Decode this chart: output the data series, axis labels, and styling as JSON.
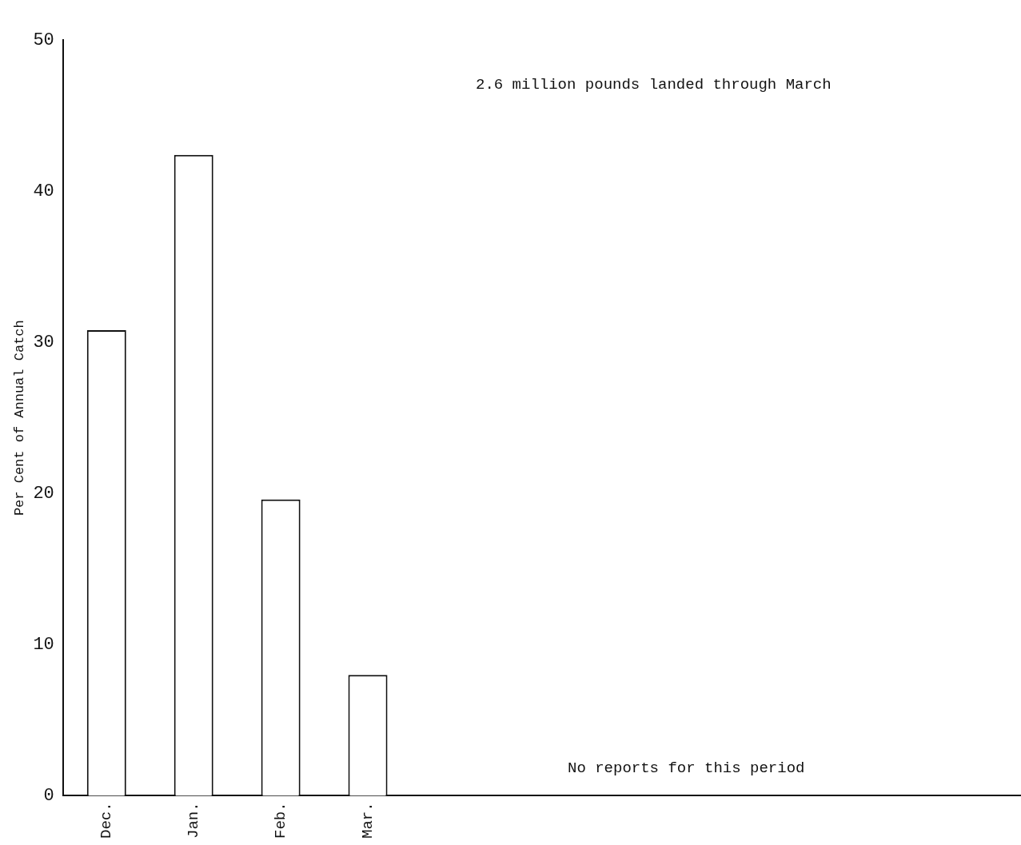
{
  "chart_data": {
    "type": "bar",
    "ylabel": "Per Cent of Annual Catch",
    "categories": [
      "Dec.",
      "Jan.",
      "Feb.",
      "Mar.",
      null,
      null,
      null,
      null,
      null,
      null,
      null
    ],
    "values": [
      30.8,
      42.4,
      19.6,
      8.0,
      null,
      null,
      null,
      null,
      null,
      null,
      null
    ],
    "color": "#ffffff",
    "ylim": [
      0,
      50
    ],
    "yticks": [
      0,
      10,
      20,
      30,
      40,
      50
    ],
    "grid": false,
    "legend": false,
    "annotations": [
      "2.6 million pounds landed through March",
      "No reports for this period"
    ]
  }
}
